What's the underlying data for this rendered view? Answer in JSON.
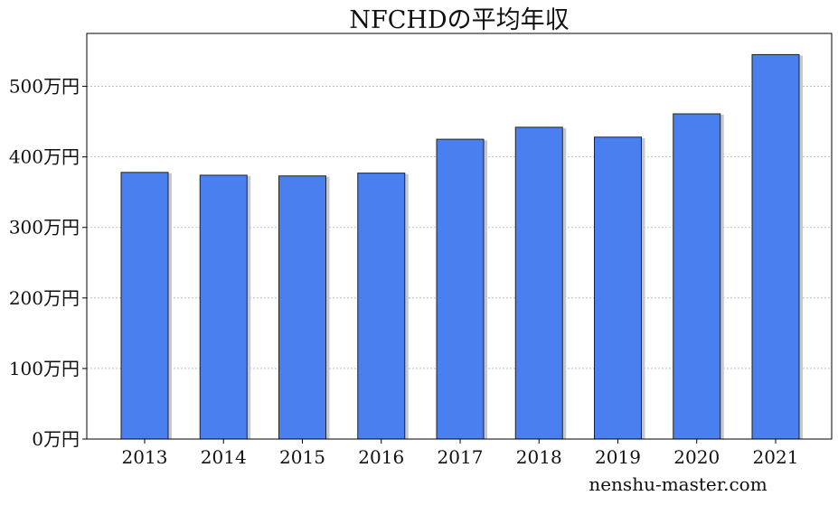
{
  "chart_data": {
    "type": "bar",
    "title": "NFCHDの平均年収",
    "categories": [
      "2013",
      "2014",
      "2015",
      "2016",
      "2017",
      "2018",
      "2019",
      "2020",
      "2021"
    ],
    "values": [
      378,
      374,
      373,
      377,
      425,
      442,
      428,
      461,
      545
    ],
    "ylim": [
      0,
      575
    ],
    "yticks": [
      0,
      100,
      200,
      300,
      400,
      500
    ],
    "ytick_labels": [
      "0万円",
      "100万円",
      "200万円",
      "300万円",
      "400万円",
      "500万円"
    ],
    "xlabel": "",
    "ylabel": "",
    "grid": "horizontal dashed",
    "bar_color": "#4a7ff0",
    "shadow_color": "#c4c8d4",
    "watermark": "nenshu-master.com"
  }
}
